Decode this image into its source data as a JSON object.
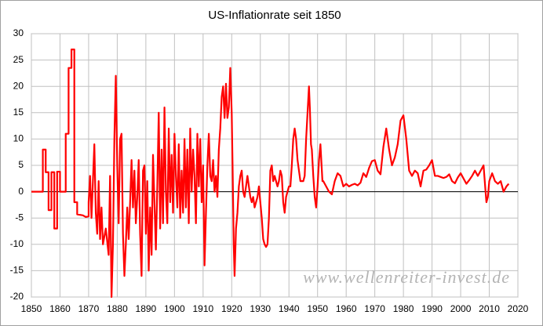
{
  "chart_data": {
    "type": "line",
    "title": "US-Inflationrate seit 1850",
    "watermark": "www.wellenreiter-invest.de",
    "color": "#ff0000",
    "grid": true,
    "xlim": [
      1850,
      2020
    ],
    "xticks": [
      1850,
      1860,
      1870,
      1880,
      1890,
      1900,
      1910,
      1920,
      1930,
      1940,
      1950,
      1960,
      1970,
      1980,
      1990,
      2000,
      2010,
      2020
    ],
    "ylim": [
      -20,
      30
    ],
    "yticks": [
      -20,
      -15,
      -10,
      -5,
      0,
      5,
      10,
      15,
      20,
      25,
      30
    ],
    "x": [
      1850,
      1854,
      1854,
      1855,
      1855,
      1856,
      1856,
      1857,
      1857,
      1858,
      1858,
      1859,
      1859,
      1860,
      1860,
      1862,
      1862,
      1863,
      1863,
      1864,
      1864,
      1865,
      1865,
      1866,
      1866,
      1868,
      1869,
      1870,
      1870,
      1870.5,
      1871,
      1871.5,
      1872,
      1872.5,
      1873,
      1873.5,
      1874,
      1874.5,
      1875,
      1876,
      1877,
      1877.5,
      1878,
      1878.5,
      1879,
      1879.5,
      1880,
      1880.5,
      1881,
      1881.5,
      1882,
      1882.5,
      1883,
      1883.5,
      1884,
      1884.5,
      1885,
      1885.5,
      1886,
      1886.5,
      1887,
      1887.5,
      1888,
      1888.5,
      1889,
      1889.5,
      1890,
      1890.5,
      1891,
      1891.5,
      1892,
      1892.5,
      1893,
      1893.5,
      1894,
      1894.5,
      1895,
      1895.5,
      1896,
      1896.5,
      1897,
      1897.5,
      1898,
      1898.5,
      1899,
      1899.5,
      1900,
      1900.5,
      1901,
      1901.5,
      1902,
      1902.5,
      1903,
      1903.5,
      1904,
      1904.5,
      1905,
      1905.5,
      1906,
      1906.5,
      1907,
      1907.5,
      1908,
      1908.5,
      1909,
      1909.5,
      1910,
      1910.5,
      1911,
      1911.5,
      1912,
      1912.5,
      1913,
      1913.5,
      1914,
      1914.5,
      1915,
      1915.5,
      1916,
      1916.5,
      1917,
      1917.5,
      1918,
      1918.5,
      1919,
      1919.5,
      1920,
      1920.3,
      1920.7,
      1921,
      1921.5,
      1922,
      1922.5,
      1923,
      1923.5,
      1924,
      1924.5,
      1925,
      1925.5,
      1926,
      1926.5,
      1927,
      1927.5,
      1928,
      1928.5,
      1929,
      1929.5,
      1930,
      1930.5,
      1931,
      1931.5,
      1932,
      1932.5,
      1933,
      1933.5,
      1934,
      1934.5,
      1935,
      1935.5,
      1936,
      1936.5,
      1937,
      1937.5,
      1938,
      1938.5,
      1939,
      1939.5,
      1940,
      1940.5,
      1941,
      1941.5,
      1942,
      1942.5,
      1943,
      1943.5,
      1944,
      1944.5,
      1945,
      1945.5,
      1946,
      1946.5,
      1947,
      1947.3,
      1947.7,
      1948,
      1948.5,
      1949,
      1949.5,
      1950,
      1950.5,
      1951,
      1951.3,
      1951.7,
      1952,
      1953,
      1954,
      1955,
      1956,
      1957,
      1958,
      1959,
      1960,
      1961,
      1962,
      1963,
      1964,
      1965,
      1966,
      1967,
      1968,
      1969,
      1970,
      1971,
      1972,
      1973,
      1974,
      1975,
      1976,
      1977,
      1978,
      1979,
      1980,
      1981,
      1982,
      1983,
      1984,
      1985,
      1986,
      1987,
      1988,
      1989,
      1990,
      1991,
      1992,
      1993,
      1994,
      1995,
      1996,
      1997,
      1998,
      1999,
      2000,
      2001,
      2002,
      2003,
      2004,
      2005,
      2006,
      2007,
      2008,
      2008.7,
      2009,
      2009.5,
      2010,
      2011,
      2012,
      2013,
      2014,
      2015,
      2016,
      2016.8
    ],
    "values": [
      0,
      0,
      8,
      8,
      3.7,
      3.7,
      -3.5,
      -3.5,
      3.7,
      3.7,
      -7,
      -7,
      3.8,
      3.8,
      0,
      0,
      11,
      11,
      23.5,
      23.5,
      27,
      27,
      -2,
      -2,
      -4.3,
      -4.5,
      -4.8,
      -4.7,
      -2,
      3,
      -5,
      2,
      9,
      -4,
      -8,
      2,
      -9,
      -3,
      -10,
      -7,
      -12,
      3,
      -20,
      -10,
      10,
      22,
      5,
      -6,
      10,
      11,
      -8,
      -16,
      -10,
      -3,
      -9,
      -2,
      6,
      -3,
      4,
      -6,
      -1,
      6,
      -8,
      -16,
      4,
      5,
      -8,
      2,
      -15,
      -3,
      -12,
      7,
      -2,
      -11,
      1,
      15,
      -7,
      8,
      -6,
      16,
      0,
      -6,
      12,
      -2,
      7,
      -4,
      11,
      3,
      -3,
      9,
      -5,
      4,
      -4,
      10,
      -3,
      8,
      -6,
      12,
      0,
      8,
      3,
      -6,
      11,
      1,
      10,
      -2,
      5,
      -14,
      -4,
      5,
      11,
      3,
      2,
      6,
      0,
      3,
      -1,
      8,
      12,
      18,
      20,
      14,
      20.5,
      14,
      16,
      23.5,
      15,
      5,
      -10,
      -16,
      -7,
      -4,
      1,
      3,
      4,
      0,
      -1,
      1,
      3,
      1,
      -1,
      -2,
      -1,
      -3,
      -2,
      -1,
      1,
      -2,
      -5,
      -9,
      -10,
      -10.5,
      -10,
      -5,
      4,
      5,
      2,
      3,
      2,
      1,
      2,
      4,
      3,
      -2,
      -4,
      -1,
      0,
      1,
      1,
      5,
      10,
      12,
      10,
      6,
      4,
      2,
      2,
      2,
      3,
      10,
      15,
      20,
      16,
      9,
      8,
      3,
      -1,
      -3,
      1,
      6,
      9,
      6,
      2,
      2,
      1,
      0,
      -0.5,
      2,
      3.5,
      3,
      1,
      1.5,
      1,
      1.3,
      1.5,
      1.2,
      1.7,
      3.5,
      2.8,
      4.5,
      5.8,
      6,
      4,
      3.3,
      8.5,
      12,
      8,
      5,
      6.5,
      9,
      13.5,
      14.5,
      10,
      4,
      3,
      4,
      3.5,
      1,
      4,
      4.2,
      5,
      6,
      3,
      3,
      2.8,
      2.6,
      2.8,
      3.3,
      2,
      1.6,
      2.7,
      3.5,
      2.5,
      1.5,
      2.2,
      3,
      4,
      3,
      4,
      5,
      0,
      -2,
      -1,
      2,
      3.5,
      2,
      1.5,
      2,
      0,
      1,
      1.5
    ]
  }
}
